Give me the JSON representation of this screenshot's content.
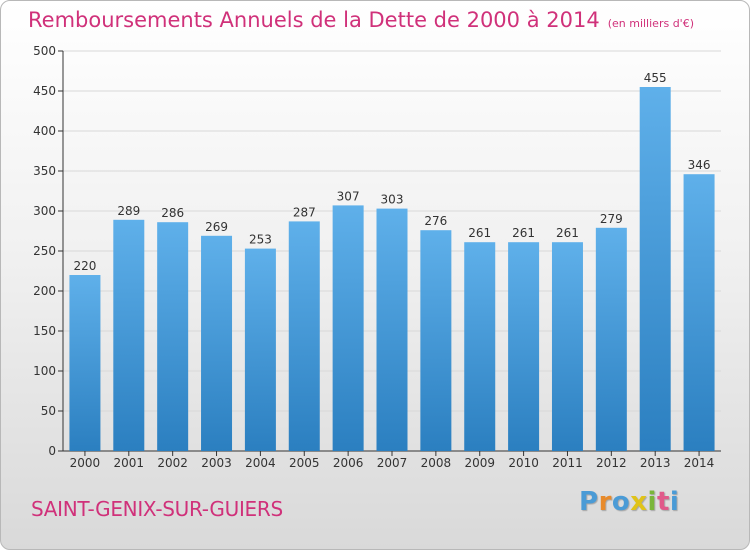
{
  "title": "Remboursements Annuels de la Dette de 2000 à 2014",
  "unit_note": "(en milliers d'€)",
  "commune": "SAINT-GENIX-SUR-GUIERS",
  "logo": {
    "letters": [
      "P",
      "r",
      "o",
      "x",
      "i",
      "t",
      "i"
    ],
    "colors": [
      "#4a9bd6",
      "#e88a2a",
      "#4a9bd6",
      "#e0c318",
      "#7ab63a",
      "#e05a8a",
      "#4a9bd6"
    ]
  },
  "colors": {
    "bar_top": "#5fb0ea",
    "bar_bottom": "#2b7fc0",
    "accent": "#d0317a",
    "grid": "#d8d8d8"
  },
  "chart_data": {
    "type": "bar",
    "categories": [
      "2000",
      "2001",
      "2002",
      "2003",
      "2004",
      "2005",
      "2006",
      "2007",
      "2008",
      "2009",
      "2010",
      "2011",
      "2012",
      "2013",
      "2014"
    ],
    "values": [
      220,
      289,
      286,
      269,
      253,
      287,
      307,
      303,
      276,
      261,
      261,
      261,
      279,
      455,
      346
    ],
    "ylim": [
      0,
      500
    ],
    "yticks": [
      0,
      50,
      100,
      150,
      200,
      250,
      300,
      350,
      400,
      450,
      500
    ],
    "grid": true
  }
}
